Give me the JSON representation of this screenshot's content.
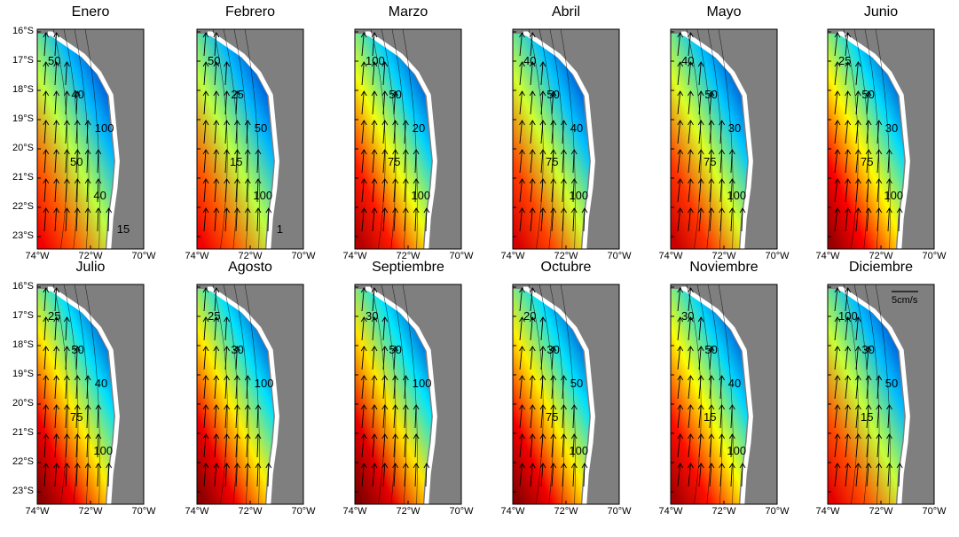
{
  "panels": [
    {
      "title": "Enero",
      "contours": [
        "50",
        "40",
        "100",
        "50",
        "40",
        "15"
      ],
      "warmth": 0.55
    },
    {
      "title": "Febrero",
      "contours": [
        "50",
        "25",
        "50",
        "15",
        "100",
        "1"
      ],
      "warmth": 0.55
    },
    {
      "title": "Marzo",
      "contours": [
        "100",
        "50",
        "20",
        "75",
        "100"
      ],
      "warmth": 0.8
    },
    {
      "title": "Abril",
      "contours": [
        "40",
        "50",
        "40",
        "75",
        "100"
      ],
      "warmth": 0.65
    },
    {
      "title": "Mayo",
      "contours": [
        "40",
        "50",
        "30",
        "75",
        "100"
      ],
      "warmth": 0.7
    },
    {
      "title": "Junio",
      "contours": [
        "25",
        "50",
        "30",
        "75",
        "100"
      ],
      "warmth": 0.9
    },
    {
      "title": "Julio",
      "contours": [
        "25",
        "50",
        "40",
        "75",
        "100"
      ],
      "warmth": 0.95
    },
    {
      "title": "Agosto",
      "contours": [
        "25",
        "30",
        "100"
      ],
      "warmth": 0.95
    },
    {
      "title": "Septiembre",
      "contours": [
        "30",
        "50",
        "100"
      ],
      "warmth": 1.0
    },
    {
      "title": "Octubre",
      "contours": [
        "20",
        "30",
        "50",
        "75",
        "100"
      ],
      "warmth": 0.95
    },
    {
      "title": "Noviembre",
      "contours": [
        "30",
        "50",
        "40",
        "15",
        "100"
      ],
      "warmth": 0.85
    },
    {
      "title": "Diciembre",
      "contours": [
        "100",
        "30",
        "50",
        "15"
      ],
      "warmth": 0.6
    }
  ],
  "y_ticks": [
    "16°S",
    "17°S",
    "18°S",
    "19°S",
    "20°S",
    "21°S",
    "22°S",
    "23°S"
  ],
  "x_ticks": [
    "74°W",
    "72°W",
    "70°W"
  ],
  "scale_label": "5cm/s",
  "colors": {
    "land": "#7f7f7f",
    "coast": "#ffffff",
    "arrow": "#000000"
  }
}
